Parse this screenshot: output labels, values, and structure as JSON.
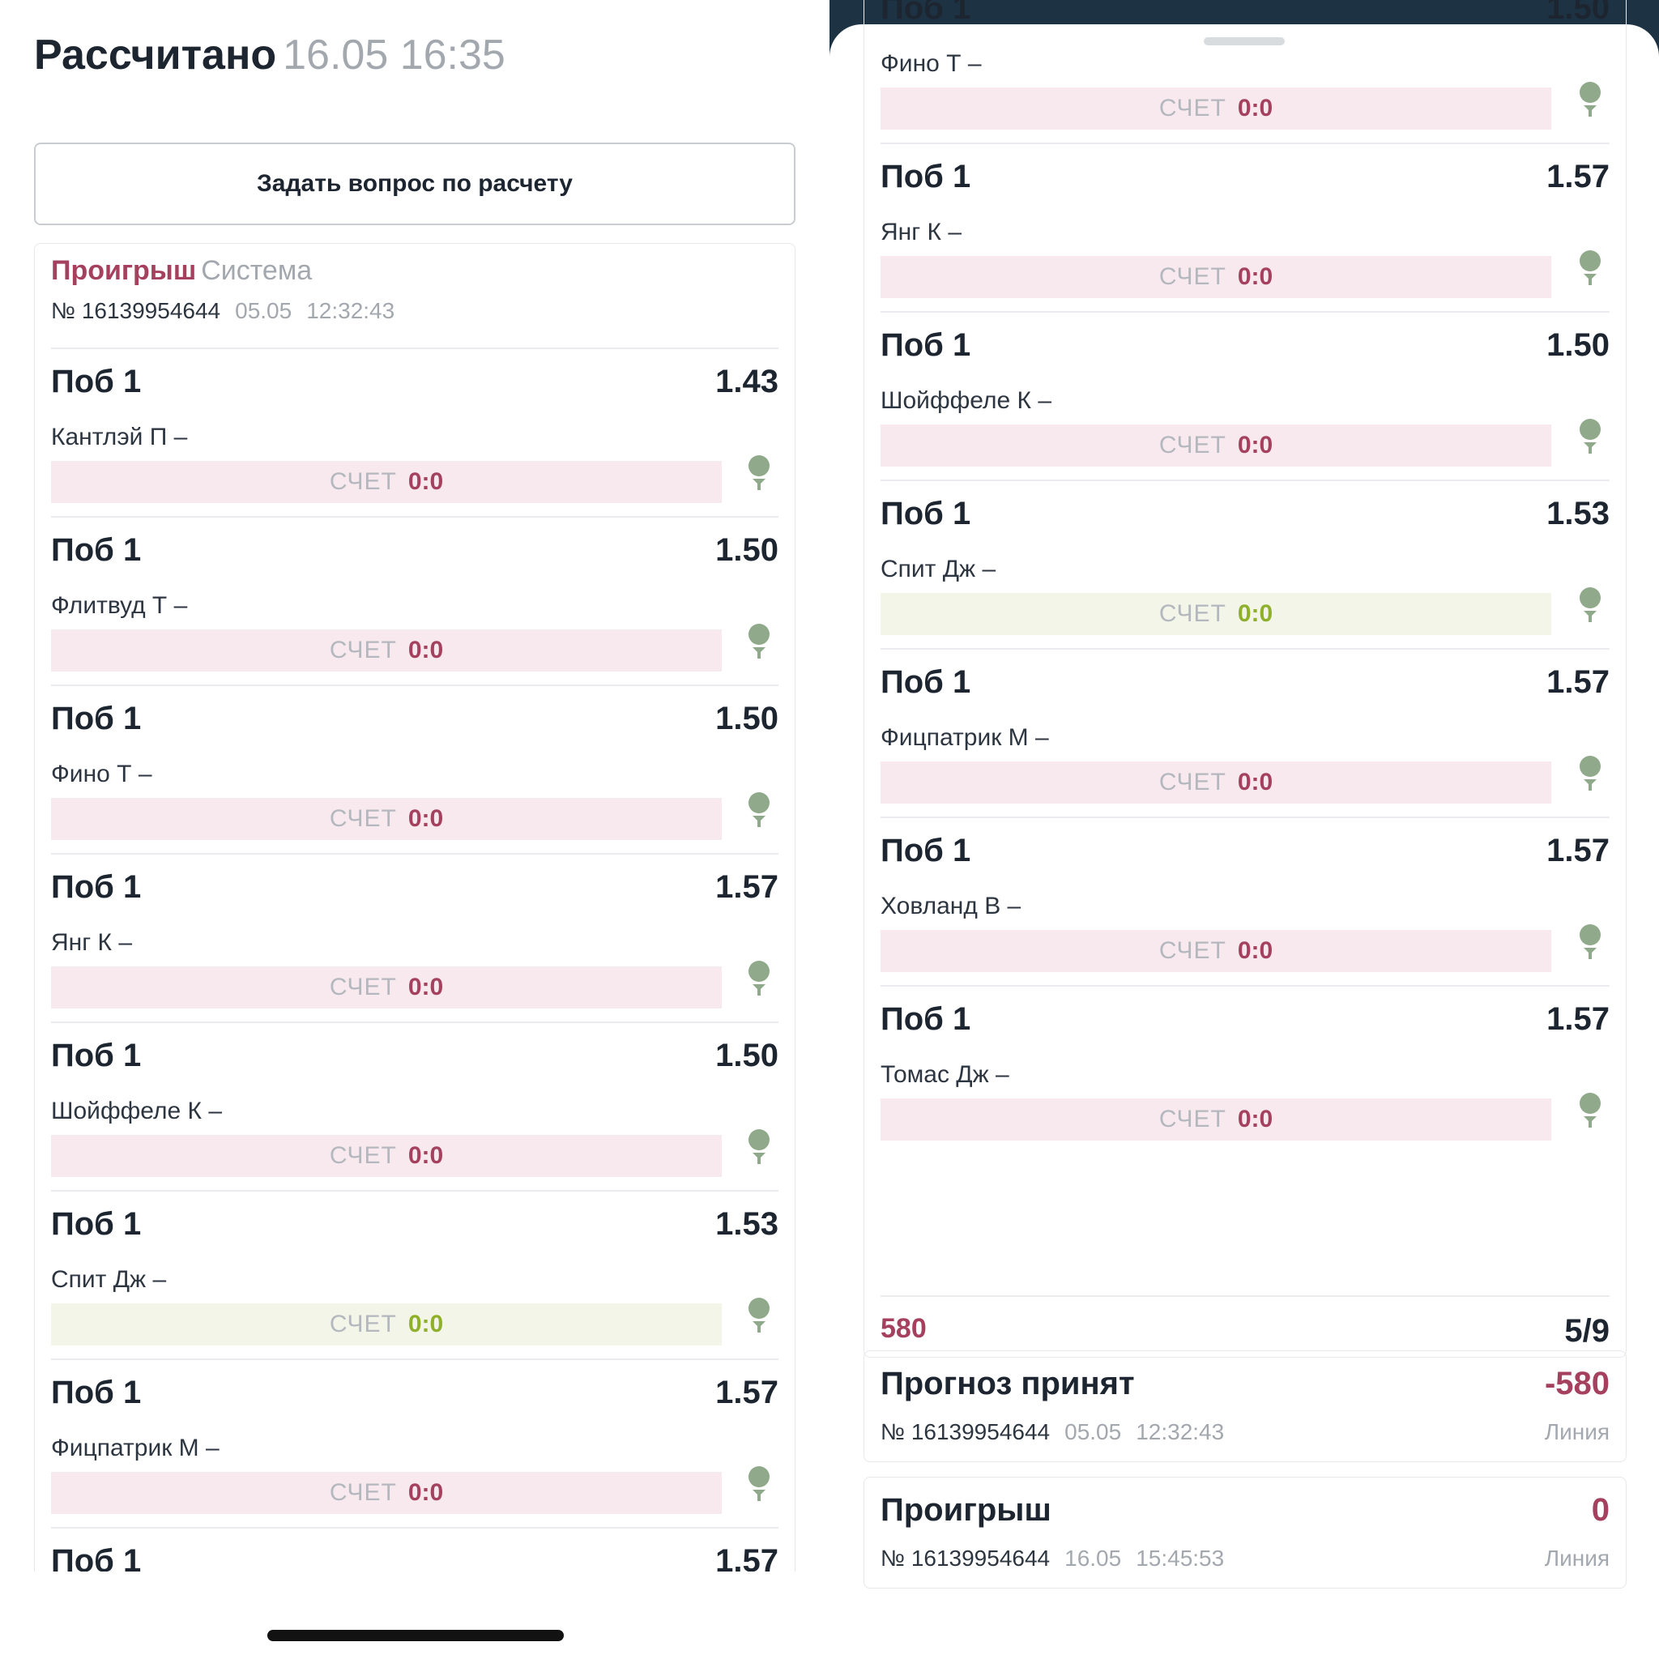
{
  "left": {
    "header": {
      "title": "Рассчитано",
      "datetime": "16.05 16:35"
    },
    "ask_button": "Задать вопрос по расчету",
    "coupon": {
      "status": "Проигрыш",
      "type": "Система",
      "number": "№ 16139954644",
      "date": "05.05",
      "time": "12:32:43"
    },
    "bets": [
      {
        "market": "Поб 1",
        "odds": "1.43",
        "player": "Кантлэй П –",
        "score_label": "СЧЕТ",
        "score": "0:0",
        "state": "lose"
      },
      {
        "market": "Поб 1",
        "odds": "1.50",
        "player": "Флитвуд Т –",
        "score_label": "СЧЕТ",
        "score": "0:0",
        "state": "lose"
      },
      {
        "market": "Поб 1",
        "odds": "1.50",
        "player": "Фино Т –",
        "score_label": "СЧЕТ",
        "score": "0:0",
        "state": "lose"
      },
      {
        "market": "Поб 1",
        "odds": "1.57",
        "player": "Янг К –",
        "score_label": "СЧЕТ",
        "score": "0:0",
        "state": "lose"
      },
      {
        "market": "Поб 1",
        "odds": "1.50",
        "player": "Шойффеле К –",
        "score_label": "СЧЕТ",
        "score": "0:0",
        "state": "lose"
      },
      {
        "market": "Поб 1",
        "odds": "1.53",
        "player": "Спит Дж –",
        "score_label": "СЧЕТ",
        "score": "0:0",
        "state": "win"
      },
      {
        "market": "Поб 1",
        "odds": "1.57",
        "player": "Фицпатрик М –",
        "score_label": "СЧЕТ",
        "score": "0:0",
        "state": "lose"
      },
      {
        "market": "Поб 1",
        "odds": "1.57",
        "player": "",
        "score_label": "",
        "score": "",
        "state": "lose"
      }
    ]
  },
  "right": {
    "bets": [
      {
        "market": "Поб 1",
        "odds": "1.50",
        "player": "Фино Т –",
        "score_label": "СЧЕТ",
        "score": "0:0",
        "state": "lose"
      },
      {
        "market": "Поб 1",
        "odds": "1.57",
        "player": "Янг К –",
        "score_label": "СЧЕТ",
        "score": "0:0",
        "state": "lose"
      },
      {
        "market": "Поб 1",
        "odds": "1.50",
        "player": "Шойффеле К –",
        "score_label": "СЧЕТ",
        "score": "0:0",
        "state": "lose"
      },
      {
        "market": "Поб 1",
        "odds": "1.53",
        "player": "Спит Дж –",
        "score_label": "СЧЕТ",
        "score": "0:0",
        "state": "win"
      },
      {
        "market": "Поб 1",
        "odds": "1.57",
        "player": "Фицпатрик М –",
        "score_label": "СЧЕТ",
        "score": "0:0",
        "state": "lose"
      },
      {
        "market": "Поб 1",
        "odds": "1.57",
        "player": "Ховланд В –",
        "score_label": "СЧЕТ",
        "score": "0:0",
        "state": "lose"
      },
      {
        "market": "Поб 1",
        "odds": "1.57",
        "player": "Томас Дж –",
        "score_label": "СЧЕТ",
        "score": "0:0",
        "state": "lose"
      }
    ],
    "footer": {
      "stake": "580",
      "ratio": "5/9"
    },
    "operations": [
      {
        "title": "Прогноз принят",
        "amount": "-580",
        "number": "№ 16139954644",
        "date": "05.05",
        "time": "12:32:43",
        "line": "Линия"
      },
      {
        "title": "Проигрыш",
        "amount": "0",
        "number": "№ 16139954644",
        "date": "16.05",
        "time": "15:45:53",
        "line": "Линия"
      }
    ]
  },
  "colors": {
    "lose_text": "#a5405e",
    "lose_bar": "#f7e9ee",
    "win_text": "#8fb02b",
    "win_bar": "#f2f5e8",
    "muted": "#a3a8af",
    "pin_icon": "#8fa98a",
    "top_bar": "#1d3242"
  },
  "icons": {
    "bet_result": "golf-pin-icon"
  }
}
